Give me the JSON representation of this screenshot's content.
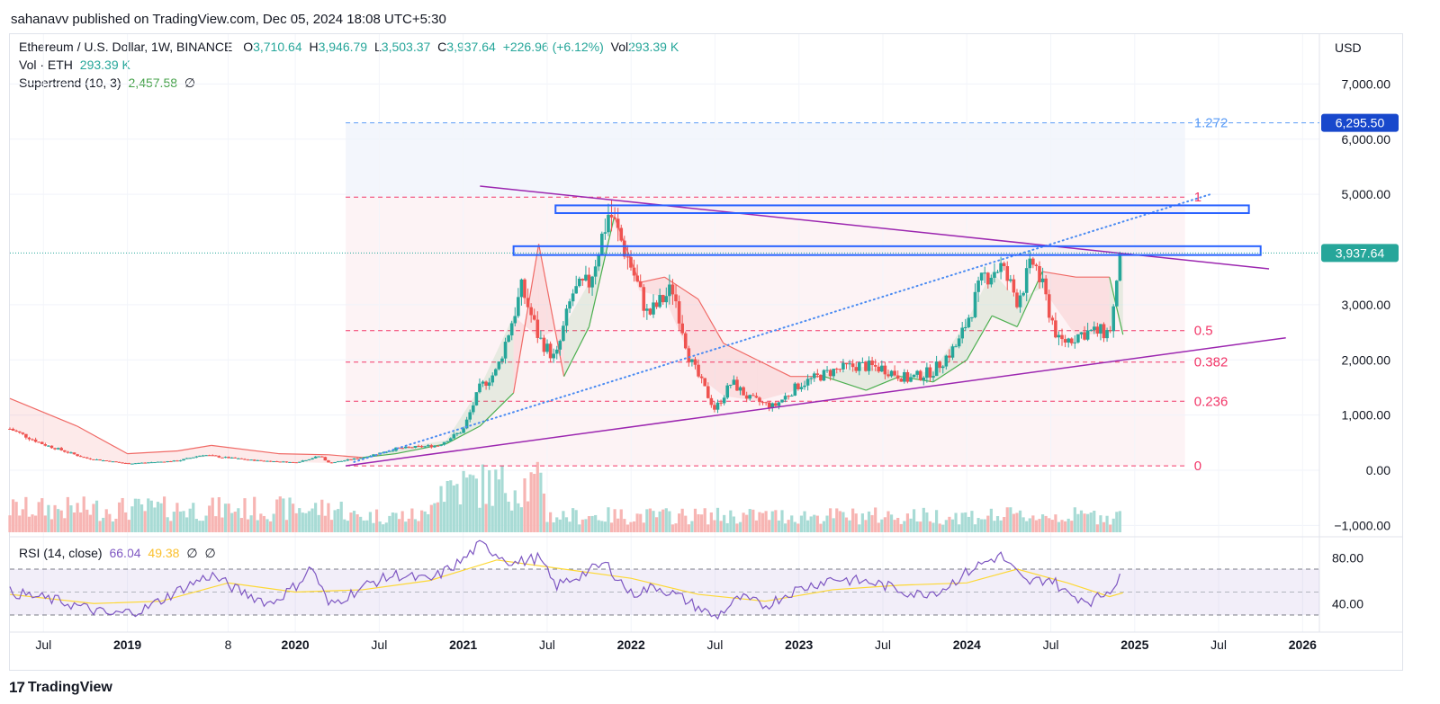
{
  "header": {
    "published": "sahanavv published on TradingView.com, Dec 05, 2024 18:08 UTC+5:30"
  },
  "legend": {
    "symbol": "Ethereum / U.S. Dollar, 1W, BINANCE",
    "o_label": "O",
    "o": "3,710.64",
    "h_label": "H",
    "h": "3,946.79",
    "l_label": "L",
    "l": "3,503.37",
    "c_label": "C",
    "c": "3,937.64",
    "change": "+226.96 (+6.12%)",
    "vol_label": "Vol",
    "vol": "293.39 K",
    "vol_eth": "Vol · ETH",
    "vol_eth_value": "293.39 K",
    "supertrend": "Supertrend (10, 3)",
    "supertrend_value": "2,457.58",
    "rsi": "RSI (14, close)",
    "rsi_value": "66.04",
    "rsi_ma": "49.38",
    "null_sym": "∅"
  },
  "currency_button": "USD",
  "price_axis_labels": [
    "7,000.00",
    "6,000.00",
    "5,000.00",
    "3,000.00",
    "2,000.00",
    "1,000.00",
    "0.00",
    "−1,000.00"
  ],
  "price_axis_values": [
    7000,
    6000,
    5000,
    3000,
    2000,
    1000,
    0,
    -1000
  ],
  "last_price": {
    "label": "3,937.64",
    "value": 3937.64,
    "color": "#26a69a"
  },
  "target_price": {
    "label": "6,295.50",
    "value": 6295.5,
    "color": "#1848cc"
  },
  "rsi_axis_labels": [
    "80.00",
    "40.00"
  ],
  "rsi_axis_values": [
    80,
    40
  ],
  "time_axis": [
    {
      "label": "Jul",
      "t": 2018.5,
      "bold": false
    },
    {
      "label": "2019",
      "t": 2019.0,
      "bold": true
    },
    {
      "label": "8",
      "t": 2019.6,
      "bold": false
    },
    {
      "label": "2020",
      "t": 2020.0,
      "bold": true
    },
    {
      "label": "Jul",
      "t": 2020.5,
      "bold": false
    },
    {
      "label": "2021",
      "t": 2021.0,
      "bold": true
    },
    {
      "label": "Jul",
      "t": 2021.5,
      "bold": false
    },
    {
      "label": "2022",
      "t": 2022.0,
      "bold": true
    },
    {
      "label": "Jul",
      "t": 2022.5,
      "bold": false
    },
    {
      "label": "2023",
      "t": 2023.0,
      "bold": true
    },
    {
      "label": "Jul",
      "t": 2023.5,
      "bold": false
    },
    {
      "label": "2024",
      "t": 2024.0,
      "bold": true
    },
    {
      "label": "Jul",
      "t": 2024.5,
      "bold": false
    },
    {
      "label": "2025",
      "t": 2025.0,
      "bold": true
    },
    {
      "label": "Jul",
      "t": 2025.5,
      "bold": false
    },
    {
      "label": "2026",
      "t": 2026.0,
      "bold": true
    }
  ],
  "brand": {
    "logo": "17",
    "name": "TradingView"
  },
  "colors": {
    "up": "#26a69a",
    "down": "#ef5350",
    "fib": "#f23668",
    "fib_ext": "#5b9cf6",
    "trend": "#9c27b0",
    "box": "#2962ff",
    "rsi": "#7e57c2",
    "rsi_ma": "#fdd835"
  },
  "chart_data": {
    "type": "candlestick",
    "title": "Ethereum / U.S. Dollar, 1W, BINANCE",
    "x_range": [
      2018.3,
      2026.1
    ],
    "ylim": [
      -1000,
      7000
    ],
    "fib_levels": [
      {
        "label": "1.272",
        "value": 6295.5
      },
      {
        "label": "1",
        "value": 4950
      },
      {
        "label": "0.5",
        "value": 2530
      },
      {
        "label": "0.382",
        "value": 1960
      },
      {
        "label": "0.236",
        "value": 1250
      },
      {
        "label": "0",
        "value": 80
      }
    ],
    "resistance_zones": [
      {
        "from": 2021.3,
        "to": 2025.75,
        "low": 3900,
        "high": 4060
      },
      {
        "from": 2021.55,
        "to": 2025.68,
        "low": 4660,
        "high": 4800
      }
    ],
    "trendlines": [
      {
        "name": "descending resistance",
        "points": [
          [
            2021.1,
            5150
          ],
          [
            2025.8,
            3650
          ]
        ]
      },
      {
        "name": "ascending support",
        "points": [
          [
            2020.3,
            80
          ],
          [
            2025.9,
            2400
          ]
        ]
      },
      {
        "name": "dotted projection",
        "points": [
          [
            2020.35,
            150
          ],
          [
            2025.45,
            5000
          ]
        ]
      }
    ],
    "price_path": [
      [
        2018.3,
        750
      ],
      [
        2018.5,
        470
      ],
      [
        2018.75,
        220
      ],
      [
        2019.0,
        120
      ],
      [
        2019.3,
        170
      ],
      [
        2019.45,
        280
      ],
      [
        2019.55,
        240
      ],
      [
        2019.75,
        180
      ],
      [
        2020.0,
        140
      ],
      [
        2020.15,
        260
      ],
      [
        2020.2,
        130
      ],
      [
        2020.4,
        230
      ],
      [
        2020.6,
        390
      ],
      [
        2020.85,
        450
      ],
      [
        2021.0,
        730
      ],
      [
        2021.1,
        1500
      ],
      [
        2021.2,
        1800
      ],
      [
        2021.35,
        3300
      ],
      [
        2021.45,
        2400
      ],
      [
        2021.55,
        2000
      ],
      [
        2021.65,
        3200
      ],
      [
        2021.75,
        3400
      ],
      [
        2021.87,
        4700
      ],
      [
        2022.0,
        3700
      ],
      [
        2022.1,
        2800
      ],
      [
        2022.25,
        3300
      ],
      [
        2022.35,
        2000
      ],
      [
        2022.5,
        1100
      ],
      [
        2022.6,
        1600
      ],
      [
        2022.7,
        1300
      ],
      [
        2022.85,
        1150
      ],
      [
        2023.0,
        1550
      ],
      [
        2023.2,
        1800
      ],
      [
        2023.35,
        1900
      ],
      [
        2023.5,
        1850
      ],
      [
        2023.65,
        1650
      ],
      [
        2023.8,
        1800
      ],
      [
        2023.95,
        2300
      ],
      [
        2024.1,
        3500
      ],
      [
        2024.2,
        3700
      ],
      [
        2024.3,
        3100
      ],
      [
        2024.4,
        3800
      ],
      [
        2024.55,
        2300
      ],
      [
        2024.7,
        2500
      ],
      [
        2024.85,
        2500
      ],
      [
        2024.93,
        3937.64
      ]
    ],
    "supertrend": [
      [
        2018.3,
        1300
      ],
      [
        2018.7,
        800
      ],
      [
        2019.0,
        300
      ],
      [
        2019.3,
        350
      ],
      [
        2019.5,
        450
      ],
      [
        2019.9,
        300
      ],
      [
        2020.2,
        280
      ],
      [
        2020.4,
        230
      ],
      [
        2020.6,
        300
      ],
      [
        2020.9,
        480
      ],
      [
        2021.1,
        800
      ],
      [
        2021.3,
        1400
      ],
      [
        2021.45,
        4100
      ],
      [
        2021.6,
        1700
      ],
      [
        2021.75,
        2600
      ],
      [
        2021.9,
        4600
      ],
      [
        2022.05,
        3400
      ],
      [
        2022.2,
        3500
      ],
      [
        2022.4,
        3100
      ],
      [
        2022.55,
        2300
      ],
      [
        2022.75,
        2000
      ],
      [
        2022.95,
        1700
      ],
      [
        2023.15,
        1700
      ],
      [
        2023.4,
        1450
      ],
      [
        2023.6,
        1700
      ],
      [
        2023.8,
        1600
      ],
      [
        2024.0,
        2000
      ],
      [
        2024.15,
        2800
      ],
      [
        2024.3,
        2600
      ],
      [
        2024.45,
        3600
      ],
      [
        2024.65,
        3500
      ],
      [
        2024.85,
        3500
      ],
      [
        2024.93,
        2457.58
      ]
    ],
    "rsi_series": [
      [
        2018.3,
        50
      ],
      [
        2018.6,
        42
      ],
      [
        2018.9,
        30
      ],
      [
        2019.1,
        35
      ],
      [
        2019.35,
        55
      ],
      [
        2019.5,
        65
      ],
      [
        2019.65,
        52
      ],
      [
        2019.85,
        40
      ],
      [
        2020.0,
        55
      ],
      [
        2020.1,
        72
      ],
      [
        2020.2,
        38
      ],
      [
        2020.45,
        58
      ],
      [
        2020.6,
        65
      ],
      [
        2020.8,
        60
      ],
      [
        2021.0,
        78
      ],
      [
        2021.1,
        92
      ],
      [
        2021.3,
        75
      ],
      [
        2021.45,
        80
      ],
      [
        2021.55,
        55
      ],
      [
        2021.7,
        65
      ],
      [
        2021.85,
        75
      ],
      [
        2022.0,
        48
      ],
      [
        2022.15,
        55
      ],
      [
        2022.3,
        45
      ],
      [
        2022.5,
        28
      ],
      [
        2022.65,
        45
      ],
      [
        2022.8,
        38
      ],
      [
        2022.95,
        50
      ],
      [
        2023.2,
        62
      ],
      [
        2023.45,
        58
      ],
      [
        2023.7,
        48
      ],
      [
        2023.85,
        52
      ],
      [
        2024.05,
        72
      ],
      [
        2024.2,
        82
      ],
      [
        2024.35,
        58
      ],
      [
        2024.5,
        62
      ],
      [
        2024.6,
        48
      ],
      [
        2024.75,
        42
      ],
      [
        2024.85,
        52
      ],
      [
        2024.93,
        66.04
      ]
    ],
    "rsi_ma_series": [
      [
        2018.3,
        48
      ],
      [
        2018.8,
        40
      ],
      [
        2019.2,
        42
      ],
      [
        2019.6,
        58
      ],
      [
        2020.0,
        50
      ],
      [
        2020.4,
        52
      ],
      [
        2020.8,
        60
      ],
      [
        2021.2,
        78
      ],
      [
        2021.6,
        70
      ],
      [
        2022.0,
        62
      ],
      [
        2022.4,
        48
      ],
      [
        2022.8,
        42
      ],
      [
        2023.2,
        52
      ],
      [
        2023.6,
        56
      ],
      [
        2024.0,
        58
      ],
      [
        2024.3,
        70
      ],
      [
        2024.6,
        58
      ],
      [
        2024.85,
        46
      ],
      [
        2024.93,
        49.38
      ]
    ],
    "rsi_bands": [
      70,
      50,
      30
    ]
  }
}
